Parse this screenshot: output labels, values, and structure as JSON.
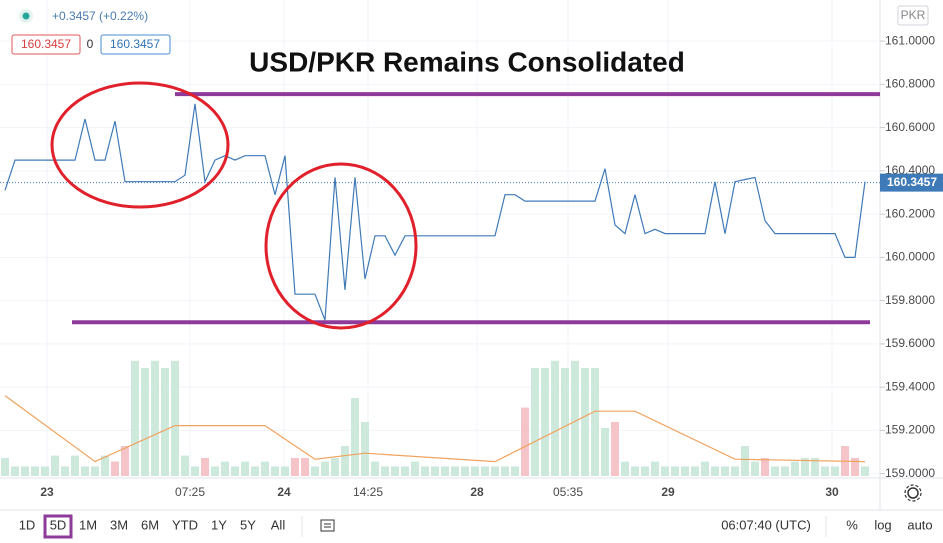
{
  "header": {
    "change": "+0.3457 (+0.22%)",
    "bid": "160.3457",
    "spread": "0",
    "ask": "160.3457",
    "currency": "PKR"
  },
  "chart_data": {
    "type": "line",
    "title": "USD/PKR Remains Consolidated",
    "series": [
      {
        "color": "#3f7ab8",
        "values": [
          160.31,
          160.45,
          160.45,
          160.45,
          160.45,
          160.45,
          160.45,
          160.45,
          160.64,
          160.45,
          160.45,
          160.63,
          160.35,
          160.35,
          160.35,
          160.35,
          160.35,
          160.35,
          160.38,
          160.71,
          160.35,
          160.45,
          160.47,
          160.45,
          160.47,
          160.47,
          160.47,
          160.29,
          160.47,
          159.83,
          159.83,
          159.83,
          159.71,
          160.37,
          159.85,
          160.37,
          159.9,
          160.1,
          160.1,
          160.01,
          160.1,
          160.1,
          160.1,
          160.1,
          160.1,
          160.1,
          160.1,
          160.1,
          160.1,
          160.1,
          160.29,
          160.29,
          160.26,
          160.26,
          160.26,
          160.26,
          160.26,
          160.26,
          160.26,
          160.26,
          160.41,
          160.15,
          160.11,
          160.29,
          160.11,
          160.13,
          160.11,
          160.11,
          160.11,
          160.11,
          160.11,
          160.35,
          160.11,
          160.35,
          160.36,
          160.37,
          160.17,
          160.11,
          160.11,
          160.11,
          160.11,
          160.11,
          160.11,
          160.11,
          160.0,
          160.0,
          160.35
        ]
      }
    ],
    "last_price": {
      "value": 160.3457,
      "label": "160.3457"
    },
    "levels": [
      {
        "value": 160.755,
        "color": "#8e3a9a"
      },
      {
        "value": 159.7,
        "color": "#8e3a9a"
      }
    ],
    "ylim": [
      158.98,
      161.19
    ],
    "yticks": [
      {
        "value": 159,
        "label": "159.0000"
      },
      {
        "value": 159.2,
        "label": "159.2000"
      },
      {
        "value": 159.4,
        "label": "159.4000"
      },
      {
        "value": 159.6,
        "label": "159.6000"
      },
      {
        "value": 159.8,
        "label": "159.8000"
      },
      {
        "value": 160,
        "label": "160.0000"
      },
      {
        "value": 160.2,
        "label": "160.2000"
      },
      {
        "value": 160.4,
        "label": "160.4000"
      },
      {
        "value": 160.6,
        "label": "160.6000"
      },
      {
        "value": 160.8,
        "label": "160.8000"
      },
      {
        "value": 161,
        "label": "161.0000"
      }
    ],
    "xlim": [
      -0.5,
      87.5
    ],
    "xticks": [
      {
        "value": 4.2,
        "label": "23"
      },
      {
        "value": 18.5,
        "label": "07:25"
      },
      {
        "value": 27.9,
        "label": "24"
      },
      {
        "value": 36.3,
        "label": "14:25"
      },
      {
        "value": 47.2,
        "label": "28"
      },
      {
        "value": 56.3,
        "label": "05:35"
      },
      {
        "value": 66.3,
        "label": "29"
      },
      {
        "value": 82.7,
        "label": "30"
      }
    ],
    "grid": true,
    "volume": {
      "ylim": [
        0,
        100
      ],
      "up_color": "#cde9dc",
      "down_color": "#f5c4c8",
      "values": [
        15,
        8,
        8,
        8,
        8,
        17,
        8,
        17,
        8,
        8,
        17,
        12,
        25,
        96,
        90,
        96,
        90,
        96,
        17,
        8,
        15,
        8,
        12,
        8,
        12,
        8,
        12,
        8,
        8,
        15,
        15,
        8,
        12,
        15,
        25,
        65,
        45,
        12,
        8,
        8,
        8,
        12,
        8,
        8,
        8,
        8,
        8,
        8,
        8,
        8,
        8,
        8,
        57,
        90,
        90,
        96,
        90,
        96,
        90,
        90,
        40,
        45,
        12,
        8,
        8,
        12,
        8,
        8,
        8,
        8,
        12,
        8,
        8,
        8,
        25,
        12,
        15,
        8,
        8,
        12,
        15,
        15,
        8,
        8,
        25,
        15,
        8
      ],
      "down": [
        11,
        12,
        20,
        29,
        30,
        52,
        61,
        76,
        84,
        85
      ],
      "ma": {
        "color": "#f0a35e",
        "x": [
          0,
          9,
          17,
          26,
          31,
          36,
          49,
          59,
          63,
          73,
          86
        ],
        "values": [
          67,
          12,
          42,
          42,
          14,
          19,
          12,
          54,
          54,
          14,
          12
        ]
      }
    }
  },
  "toolbar": {
    "ranges": [
      "1D",
      "5D",
      "1M",
      "3M",
      "6M",
      "YTD",
      "1Y",
      "5Y",
      "All"
    ],
    "selected_range": 1,
    "clock": "06:07:40 (UTC)",
    "percent": "%",
    "log": "log",
    "auto": "auto"
  }
}
